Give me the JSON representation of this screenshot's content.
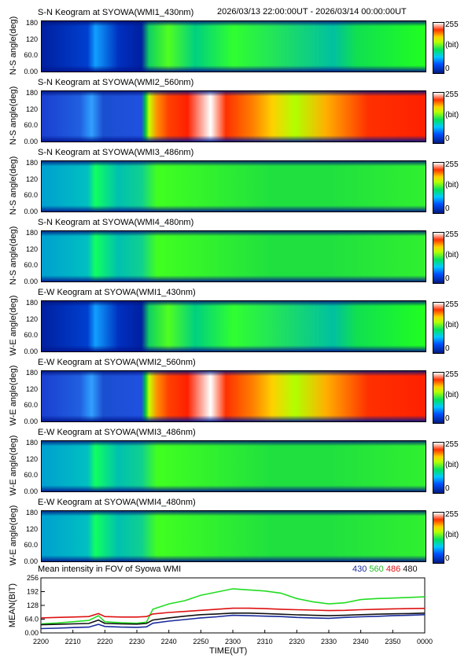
{
  "header": {
    "time_range": "2026/03/13 22:00:00UT - 2026/03/14 00:00:00UT"
  },
  "panels": [
    {
      "title": "S-N Keogram at SYOWA(WMI1_430nm)",
      "ylabel": "N-S angle(deg)",
      "intensity": "low"
    },
    {
      "title": "S-N Keogram at SYOWA(WMI2_560nm)",
      "ylabel": "N-S angle(deg)",
      "intensity": "high"
    },
    {
      "title": "S-N Keogram at SYOWA(WMI3_486nm)",
      "ylabel": "N-S angle(deg)",
      "intensity": "mid"
    },
    {
      "title": "S-N Keogram at SYOWA(WMI4_480nm)",
      "ylabel": "N-S angle(deg)",
      "intensity": "mid"
    },
    {
      "title": "E-W Keogram at SYOWA(WMI1_430nm)",
      "ylabel": "W-E angle(deg)",
      "intensity": "low"
    },
    {
      "title": "E-W Keogram at SYOWA(WMI2_560nm)",
      "ylabel": "W-E angle(deg)",
      "intensity": "high"
    },
    {
      "title": "E-W Keogram at SYOWA(WMI3_486nm)",
      "ylabel": "W-E angle(deg)",
      "intensity": "mid"
    },
    {
      "title": "E-W Keogram at SYOWA(WMI4_480nm)",
      "ylabel": "W-E angle(deg)",
      "intensity": "mid"
    }
  ],
  "angle_ticks": [
    "180",
    "120",
    "60.0",
    "0.00"
  ],
  "colorbar": {
    "max": "255",
    "unit": "(bit)",
    "min": "0"
  },
  "chart_data": {
    "type": "line",
    "title": "Mean intensity in FOV of Syowa WMI",
    "xlabel": "TIME(UT)",
    "ylabel": "MEAN(BIT)",
    "ylim": [
      0,
      256
    ],
    "y_ticks": [
      "256",
      "192",
      "128",
      "64.0",
      "0.00"
    ],
    "x_ticks": [
      "2200",
      "2210",
      "2220",
      "2230",
      "2240",
      "2250",
      "2300",
      "2310",
      "2320",
      "2330",
      "2340",
      "2350",
      "0000"
    ],
    "x_minutes": [
      0,
      5,
      10,
      15,
      18,
      20,
      25,
      30,
      33,
      35,
      40,
      45,
      50,
      55,
      60,
      65,
      70,
      75,
      80,
      85,
      90,
      95,
      100,
      105,
      110,
      115,
      120
    ],
    "series": [
      {
        "name": "430",
        "color": "#1a2a9a",
        "values": [
          20,
          22,
          25,
          27,
          40,
          30,
          27,
          26,
          28,
          45,
          55,
          62,
          70,
          75,
          82,
          80,
          78,
          76,
          72,
          70,
          68,
          72,
          75,
          77,
          80,
          82,
          85
        ]
      },
      {
        "name": "560",
        "color": "#22dd22",
        "values": [
          42,
          46,
          52,
          58,
          80,
          52,
          47,
          45,
          50,
          110,
          135,
          150,
          175,
          190,
          205,
          200,
          195,
          185,
          160,
          145,
          135,
          140,
          155,
          160,
          162,
          165,
          168
        ]
      },
      {
        "name": "486",
        "color": "#dd1111",
        "values": [
          70,
          72,
          74,
          76,
          90,
          76,
          74,
          74,
          76,
          88,
          95,
          100,
          105,
          110,
          115,
          115,
          113,
          110,
          108,
          106,
          104,
          105,
          108,
          110,
          112,
          113,
          114
        ]
      },
      {
        "name": "480",
        "color": "#111111",
        "values": [
          38,
          40,
          42,
          44,
          60,
          44,
          42,
          41,
          44,
          60,
          70,
          78,
          85,
          88,
          92,
          92,
          90,
          87,
          84,
          82,
          80,
          82,
          85,
          87,
          89,
          90,
          92
        ]
      }
    ]
  }
}
